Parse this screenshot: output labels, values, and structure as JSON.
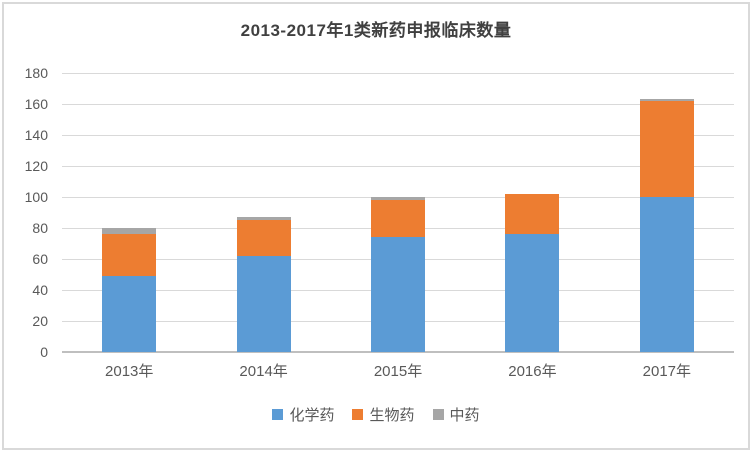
{
  "title": "2013-2017年1类新药申报临床数量",
  "chart_data": {
    "type": "bar",
    "stacked": true,
    "title": "2013-2017年1类新药申报临床数量",
    "categories": [
      "2013年",
      "2014年",
      "2015年",
      "2016年",
      "2017年"
    ],
    "series": [
      {
        "name": "化学药",
        "color": "#5b9bd5",
        "values": [
          49,
          62,
          74,
          76,
          100
        ]
      },
      {
        "name": "生物药",
        "color": "#ed7d31",
        "values": [
          27,
          23,
          24,
          26,
          62
        ]
      },
      {
        "name": "中药",
        "color": "#a6a6a6",
        "values": [
          4,
          2,
          2,
          0,
          1
        ]
      }
    ],
    "totals": [
      80,
      87,
      100,
      102,
      163
    ],
    "xlabel": "",
    "ylabel": "",
    "ylim": [
      0,
      180
    ],
    "ytick_interval": 20,
    "ytick_labels": [
      "0",
      "20",
      "40",
      "60",
      "80",
      "100",
      "120",
      "140",
      "160",
      "180"
    ],
    "grid": "horizontal",
    "legend_position": "bottom",
    "legend_entries": [
      "化学药",
      "生物药",
      "中药"
    ]
  },
  "colors": {
    "frame_border": "#d9d9d9",
    "gridline": "#d9d9d9",
    "baseline": "#bfbfbf",
    "title_text": "#404040",
    "axis_text": "#595959",
    "background": "#ffffff"
  }
}
